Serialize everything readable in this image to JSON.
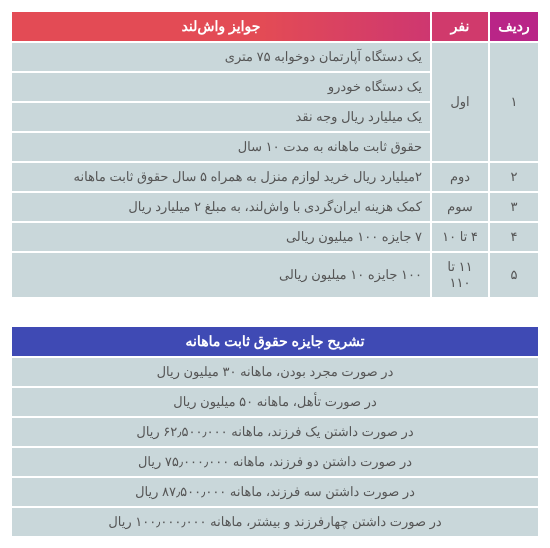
{
  "table1": {
    "headers": [
      "ردیف",
      "نفر",
      "جوایز واش‌لند"
    ],
    "rows": [
      {
        "rowspan": 4,
        "radif": "۱",
        "nafar": "اول",
        "prize": "یک دستگاه آپارتمان دوخوابه ۷۵ متری"
      },
      {
        "prize": "یک دستگاه خودرو"
      },
      {
        "prize": "یک میلیارد ریال وجه نقد"
      },
      {
        "prize": "حقوق ثابت ماهانه به مدت ۱۰ سال"
      },
      {
        "radif": "۲",
        "nafar": "دوم",
        "prize": "۲میلیارد ریال خرید لوازم منزل به همراه ۵ سال حقوق ثابت ماهانه"
      },
      {
        "radif": "۳",
        "nafar": "سوم",
        "prize": "کمک هزینه ایران‌گردی با واش‌لند، به مبلغ ۲ میلیارد ریال"
      },
      {
        "radif": "۴",
        "nafar": "۴ تا ۱۰",
        "prize": "۷ جایزه ۱۰۰ میلیون ریالی"
      },
      {
        "radif": "۵",
        "nafar": "۱۱ تا ۱۱۰",
        "prize": "۱۰۰ جایزه ۱۰ میلیون ریالی"
      }
    ]
  },
  "table2": {
    "header": "تشریح جایزه حقوق ثابت ماهانه",
    "rows": [
      "در صورت مجرد بودن، ماهانه ۳۰ میلیون ریال",
      "در صورت تأهل، ماهانه ۵۰ میلیون ریال",
      "در صورت داشتن یک فرزند، ماهانه ۶۲٫۵۰۰٫۰۰۰ ریال",
      "در صورت داشتن دو فرزند، ماهانه ۷۵٫۰۰۰٫۰۰۰ ریال",
      "در صورت داشتن سه فرزند، ماهانه ۸۷٫۵۰۰٫۰۰۰ ریال",
      "در صورت داشتن چهارفرزند و بیشتر، ماهانه ۱۰۰٫۰۰۰٫۰۰۰ ریال"
    ]
  }
}
